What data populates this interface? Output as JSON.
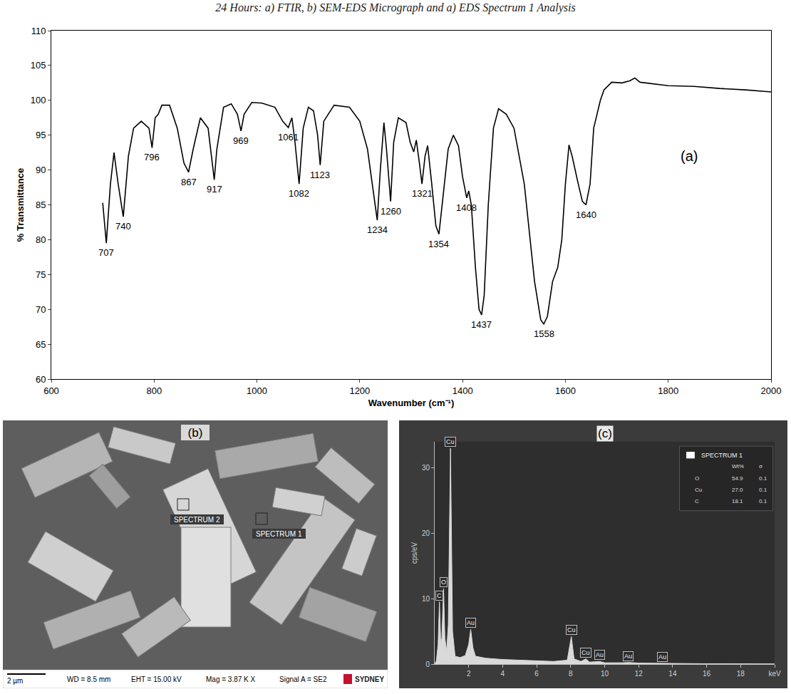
{
  "caption": "24 Hours: a) FTIR, b) SEM-EDS Micrograph and a) EDS Spectrum 1 Analysis",
  "chart_data": [
    {
      "type": "line",
      "panel_label": "(a)",
      "x_label": "Wavenumber (cm⁻¹)",
      "y_label": "% Transmittance",
      "color": "#000000",
      "grid": false,
      "xlim": [
        600,
        2000
      ],
      "xticks": [
        600,
        800,
        1000,
        1200,
        1400,
        1600,
        1800,
        2000
      ],
      "ylim": [
        60,
        110
      ],
      "yticks": [
        60,
        65,
        70,
        75,
        80,
        85,
        90,
        95,
        100,
        105,
        110
      ],
      "x": [
        700,
        707,
        715,
        722,
        730,
        740,
        750,
        760,
        775,
        790,
        796,
        802,
        808,
        815,
        830,
        845,
        858,
        867,
        876,
        890,
        905,
        912,
        917,
        922,
        935,
        950,
        962,
        969,
        975,
        990,
        1010,
        1035,
        1050,
        1061,
        1068,
        1074,
        1082,
        1090,
        1100,
        1110,
        1118,
        1123,
        1130,
        1150,
        1180,
        1200,
        1215,
        1228,
        1234,
        1240,
        1247,
        1252,
        1260,
        1266,
        1275,
        1290,
        1298,
        1305,
        1310,
        1316,
        1321,
        1327,
        1332,
        1340,
        1348,
        1354,
        1362,
        1372,
        1382,
        1392,
        1400,
        1408,
        1412,
        1417,
        1425,
        1432,
        1437,
        1442,
        1450,
        1460,
        1470,
        1485,
        1500,
        1520,
        1540,
        1552,
        1558,
        1565,
        1575,
        1585,
        1593,
        1600,
        1607,
        1613,
        1625,
        1633,
        1640,
        1648,
        1655,
        1662,
        1668,
        1675,
        1690,
        1710,
        1725,
        1735,
        1745,
        1800,
        1850,
        1900,
        1950,
        2000
      ],
      "values": [
        85.3,
        79.5,
        88,
        92.5,
        88,
        83.3,
        92,
        96,
        97,
        96,
        93.2,
        97.5,
        98,
        99.3,
        99.3,
        96,
        91,
        89.7,
        93,
        97.5,
        96,
        92,
        88.6,
        93,
        99,
        99.5,
        98,
        95.6,
        98,
        99.7,
        99.6,
        99,
        97,
        96.1,
        97.5,
        94,
        88,
        96,
        99,
        98.5,
        95,
        90.7,
        97,
        99.3,
        99,
        97,
        93,
        86,
        82.8,
        90,
        96.8,
        93,
        85.5,
        94,
        97.5,
        96.8,
        94,
        92.6,
        94.3,
        91,
        88,
        92,
        93.5,
        88,
        82,
        80.8,
        86,
        93,
        95,
        93.5,
        89,
        86,
        87,
        85,
        76,
        70,
        69.2,
        72,
        85,
        96,
        98.8,
        98,
        96,
        88,
        74,
        68.5,
        67.9,
        69,
        74,
        76,
        80,
        88,
        93.6,
        92,
        88,
        85.5,
        85,
        88,
        96,
        98,
        100,
        101.5,
        102.6,
        102.5,
        102.8,
        103.2,
        102.6,
        102.1,
        102,
        101.7,
        101.5,
        101.2
      ],
      "peak_labels": [
        {
          "x": 707,
          "y": 79.5
        },
        {
          "x": 740,
          "y": 83.3
        },
        {
          "x": 796,
          "y": 93.2
        },
        {
          "x": 867,
          "y": 89.7
        },
        {
          "x": 917,
          "y": 88.6
        },
        {
          "x": 969,
          "y": 95.6
        },
        {
          "x": 1061,
          "y": 96.1
        },
        {
          "x": 1082,
          "y": 88
        },
        {
          "x": 1123,
          "y": 90.7
        },
        {
          "x": 1234,
          "y": 82.8
        },
        {
          "x": 1260,
          "y": 85.5
        },
        {
          "x": 1321,
          "y": 88
        },
        {
          "x": 1354,
          "y": 80.8
        },
        {
          "x": 1408,
          "y": 86
        },
        {
          "x": 1437,
          "y": 69.2
        },
        {
          "x": 1558,
          "y": 67.9
        },
        {
          "x": 1640,
          "y": 85
        }
      ]
    },
    {
      "type": "area",
      "panel_label": "(c)",
      "y_label": "cps/eV",
      "color": "#d9d9d9",
      "grid": false,
      "xlim": [
        0,
        20
      ],
      "xticks": [
        2,
        4,
        6,
        8,
        10,
        12,
        14,
        16,
        18,
        {
          "value": 20,
          "label": "keV"
        }
      ],
      "ylim": [
        0,
        34
      ],
      "yticks": [
        0,
        10,
        20,
        30
      ],
      "x": [
        0,
        0.1,
        0.2,
        0.28,
        0.36,
        0.42,
        0.52,
        0.6,
        0.7,
        0.8,
        0.93,
        1.05,
        1.2,
        1.5,
        1.8,
        2.0,
        2.12,
        2.25,
        2.4,
        3,
        4,
        5,
        6,
        7,
        7.8,
        8.04,
        8.2,
        8.6,
        8.9,
        9.1,
        9.7,
        10,
        11,
        11.4,
        12,
        13,
        13.4,
        14,
        16,
        18,
        20
      ],
      "values": [
        0,
        0.5,
        3,
        9.5,
        3,
        4,
        11.5,
        4,
        2,
        6,
        33,
        5,
        1.2,
        1,
        1.3,
        3,
        5.3,
        2.5,
        1.2,
        0.9,
        0.7,
        0.6,
        0.5,
        0.4,
        0.6,
        4.2,
        0.8,
        0.4,
        0.8,
        0.3,
        0.4,
        0.2,
        0.2,
        0.25,
        0.15,
        0.1,
        0.12,
        0.1,
        0.05,
        0.05,
        0.03
      ],
      "peak_labels": [
        {
          "label": "C",
          "x": 0.28,
          "y": 9.5
        },
        {
          "label": "O",
          "x": 0.52,
          "y": 11.5
        },
        {
          "label": "Cu",
          "x": 0.93,
          "y": 33
        },
        {
          "label": "Au",
          "x": 2.12,
          "y": 5.3
        },
        {
          "label": "Cu",
          "x": 8.04,
          "y": 4.2
        },
        {
          "label": "Cu",
          "x": 8.9,
          "y": 0.8
        },
        {
          "label": "Au",
          "x": 9.7,
          "y": 0.4
        },
        {
          "label": "Au",
          "x": 11.4,
          "y": 0.25
        },
        {
          "label": "Au",
          "x": 13.4,
          "y": 0.12
        }
      ],
      "legend_table": {
        "title": "SPECTRUM 1",
        "columns": [
          "Wt%",
          "σ"
        ],
        "rows": [
          [
            "O",
            "54.9",
            "0.1"
          ],
          [
            "Cu",
            "27.0",
            "0.1"
          ],
          [
            "C",
            "18.1",
            "0.1"
          ]
        ]
      }
    }
  ],
  "micrograph": {
    "panel_label": "(b)",
    "boxes": [
      "SPECTRUM 2",
      "SPECTRUM 1"
    ],
    "scale_bar": "2 µm",
    "info": [
      "WD = 8.5 mm",
      "EHT = 15.00 kV",
      "Mag = 3.87 K X",
      "Signal A = SE2"
    ],
    "logo": "SYDNEY"
  }
}
